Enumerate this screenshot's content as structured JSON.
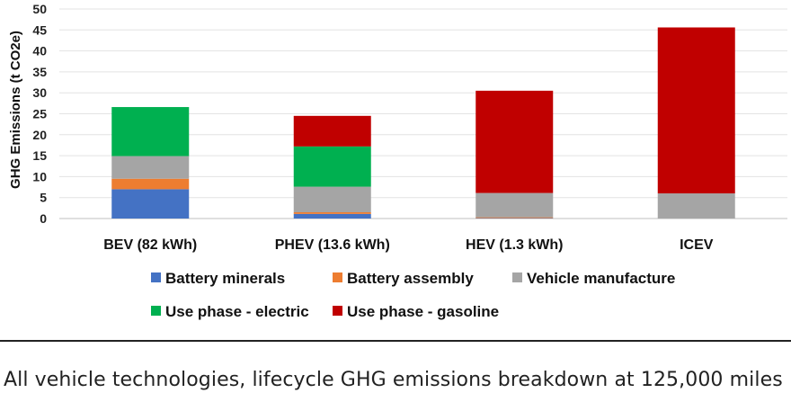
{
  "chart_data": {
    "type": "bar",
    "stacked": true,
    "categories": [
      "BEV (82 kWh)",
      "PHEV (13.6 kWh)",
      "HEV (1.3 kWh)",
      "ICEV"
    ],
    "series": [
      {
        "name": "Battery minerals",
        "color": "#4472c4",
        "values": [
          7.0,
          1.1,
          0.1,
          0
        ]
      },
      {
        "name": "Battery assembly",
        "color": "#ed7d31",
        "values": [
          2.5,
          0.4,
          0.2,
          0
        ]
      },
      {
        "name": "Vehicle manufacture",
        "color": "#a5a5a5",
        "values": [
          5.4,
          6.1,
          5.8,
          6.0
        ]
      },
      {
        "name": "Use phase - electric",
        "color": "#00b050",
        "values": [
          11.7,
          9.6,
          0,
          0
        ]
      },
      {
        "name": "Use phase - gasoline",
        "color": "#c00000",
        "values": [
          0,
          7.3,
          24.4,
          39.6
        ]
      }
    ],
    "ylabel": "GHG Emissions (t CO2e)",
    "ylim": [
      0,
      50
    ],
    "yticks": [
      0,
      5,
      10,
      15,
      20,
      25,
      30,
      35,
      40,
      45,
      50
    ],
    "grid": true,
    "legend": "bottom"
  },
  "caption": "All vehicle technologies, lifecycle GHG emissions breakdown at 125,000 miles"
}
